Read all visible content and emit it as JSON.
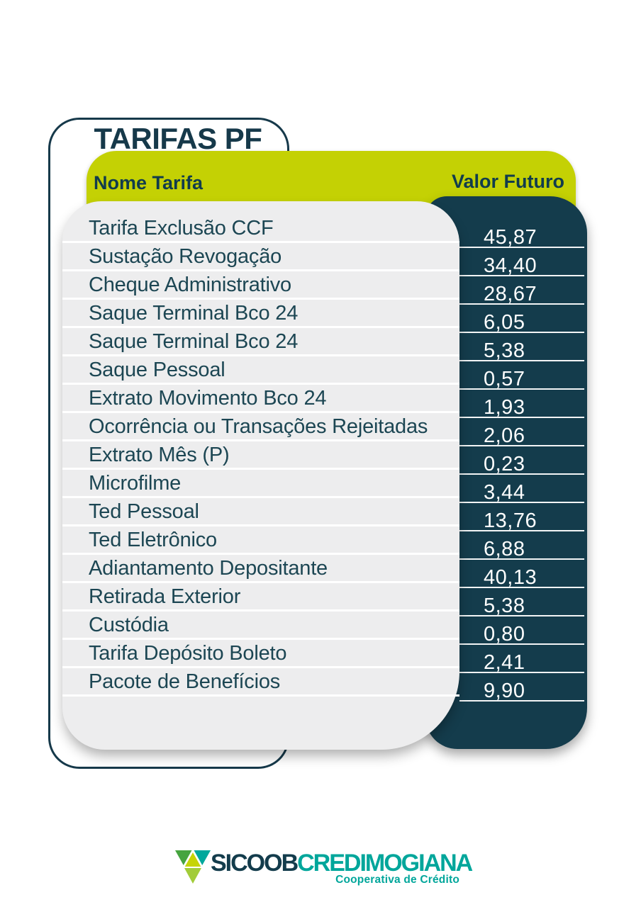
{
  "title": "TARIFAS PF",
  "table": {
    "col_name_header": "Nome Tarifa",
    "col_value_header": "Valor Futuro",
    "rows": [
      {
        "name": "Tarifa Exclusão CCF",
        "value": "45,87"
      },
      {
        "name": "Sustação Revogação",
        "value": "34,40"
      },
      {
        "name": "Cheque Administrativo",
        "value": "28,67"
      },
      {
        "name": "Saque Terminal Bco 24",
        "value": "6,05"
      },
      {
        "name": "Saque Terminal Bco 24",
        "value": "5,38"
      },
      {
        "name": "Saque Pessoal",
        "value": "0,57"
      },
      {
        "name": "Extrato Movimento Bco 24",
        "value": "1,93"
      },
      {
        "name": "Ocorrência ou Transações Rejeitadas",
        "value": "2,06"
      },
      {
        "name": "Extrato Mês (P)",
        "value": "0,23"
      },
      {
        "name": "Microfilme",
        "value": "3,44"
      },
      {
        "name": "Ted Pessoal",
        "value": "13,76"
      },
      {
        "name": "Ted Eletrônico",
        "value": "6,88"
      },
      {
        "name": "Adiantamento Depositante",
        "value": "40,13"
      },
      {
        "name": "Retirada Exterior",
        "value": "5,38"
      },
      {
        "name": "Custódia",
        "value": "0,80"
      },
      {
        "name": "Tarifa Depósito Boleto",
        "value": "2,41"
      },
      {
        "name": "Pacote de Benefícios",
        "value": "9,90"
      }
    ]
  },
  "footer": {
    "brand_primary": "SICOOB",
    "brand_secondary": "CREDIMOGIANA",
    "tagline": "Cooperativa de Crédito",
    "logo_icon": "sicoob-triangles-icon"
  },
  "colors": {
    "lime": "#c4d104",
    "navy": "#143c4c",
    "border_navy": "#16394a",
    "row_gray": "#ededee",
    "row_text": "#1c4653",
    "header_text": "#113c4d",
    "teal": "#00a69b",
    "brand_navy": "#133c4c",
    "logo_green": "#46a43f",
    "logo_teal": "#00a89c",
    "logo_lime": "#c6d405",
    "logo_lime_green": "#a2cc39"
  }
}
